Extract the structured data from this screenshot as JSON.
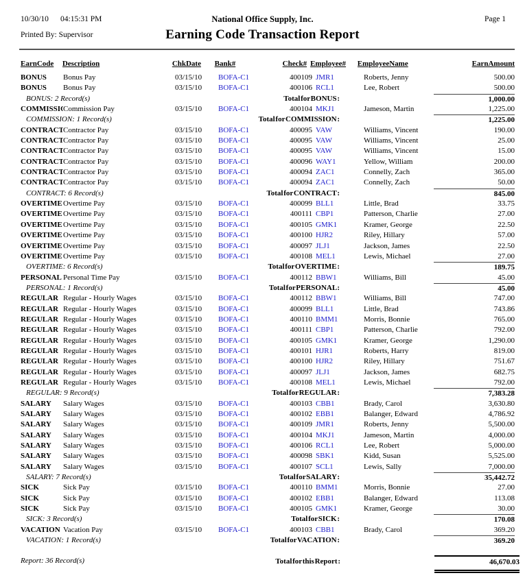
{
  "header": {
    "date": "10/30/10",
    "time": "04:15:31 PM",
    "company": "National Office Supply, Inc.",
    "page": "Page 1",
    "printed_by": "Printed By: Supervisor",
    "title": "Earning Code Transaction Report"
  },
  "columns": [
    "EarnCode",
    "Description",
    "ChkDate",
    "Bank#",
    "Check#",
    "Employee#",
    "EmployeeName",
    "EarnAmount"
  ],
  "colors": {
    "link_blue": "#2020cc",
    "text": "#000000",
    "rule_gray": "#555555"
  },
  "sections": [
    {
      "rows": [
        {
          "code": "BONUS",
          "desc": "Bonus Pay",
          "date": "03/15/10",
          "bank": "BOFA-C1",
          "check": "400109",
          "emp": "JMR1",
          "name": "Roberts, Jenny",
          "amount": "500.00"
        },
        {
          "code": "BONUS",
          "desc": "Bonus Pay",
          "date": "03/15/10",
          "bank": "BOFA-C1",
          "check": "400106",
          "emp": "RCL1",
          "name": "Lee, Robert",
          "amount": "500.00"
        }
      ],
      "summary": "BONUS: 2 Record(s)",
      "total_label": "Total for BONUS :",
      "total": "1,000.00"
    },
    {
      "rows": [
        {
          "code": "COMMISSION",
          "desc": "Commission Pay",
          "date": "03/15/10",
          "bank": "BOFA-C1",
          "check": "400104",
          "emp": "MKJ1",
          "name": "Jameson, Martin",
          "amount": "1,225.00"
        }
      ],
      "summary": "COMMISSION: 1 Record(s)",
      "total_label": "Total for COMMISSION :",
      "total": "1,225.00"
    },
    {
      "rows": [
        {
          "code": "CONTRACT",
          "desc": "Contractor Pay",
          "date": "03/15/10",
          "bank": "BOFA-C1",
          "check": "400095",
          "emp": "VAW",
          "name": "Williams, Vincent",
          "amount": "190.00"
        },
        {
          "code": "CONTRACT",
          "desc": "Contractor Pay",
          "date": "03/15/10",
          "bank": "BOFA-C1",
          "check": "400095",
          "emp": "VAW",
          "name": "Williams, Vincent",
          "amount": "25.00"
        },
        {
          "code": "CONTRACT",
          "desc": "Contractor Pay",
          "date": "03/15/10",
          "bank": "BOFA-C1",
          "check": "400095",
          "emp": "VAW",
          "name": "Williams, Vincent",
          "amount": "15.00"
        },
        {
          "code": "CONTRACT",
          "desc": "Contractor Pay",
          "date": "03/15/10",
          "bank": "BOFA-C1",
          "check": "400096",
          "emp": "WAY1",
          "name": "Yellow, William",
          "amount": "200.00"
        },
        {
          "code": "CONTRACT",
          "desc": "Contractor Pay",
          "date": "03/15/10",
          "bank": "BOFA-C1",
          "check": "400094",
          "emp": "ZAC1",
          "name": "Connelly, Zach",
          "amount": "365.00"
        },
        {
          "code": "CONTRACT",
          "desc": "Contractor Pay",
          "date": "03/15/10",
          "bank": "BOFA-C1",
          "check": "400094",
          "emp": "ZAC1",
          "name": "Connelly, Zach",
          "amount": "50.00"
        }
      ],
      "summary": "CONTRACT: 6 Record(s)",
      "total_label": "Total for CONTRACT :",
      "total": "845.00"
    },
    {
      "rows": [
        {
          "code": "OVERTIME",
          "desc": "Overtime Pay",
          "date": "03/15/10",
          "bank": "BOFA-C1",
          "check": "400099",
          "emp": "BLL1",
          "name": "Little, Brad",
          "amount": "33.75"
        },
        {
          "code": "OVERTIME",
          "desc": "Overtime Pay",
          "date": "03/15/10",
          "bank": "BOFA-C1",
          "check": "400111",
          "emp": "CBP1",
          "name": "Patterson, Charlie",
          "amount": "27.00"
        },
        {
          "code": "OVERTIME",
          "desc": "Overtime Pay",
          "date": "03/15/10",
          "bank": "BOFA-C1",
          "check": "400105",
          "emp": "GMK1",
          "name": "Kramer, George",
          "amount": "22.50"
        },
        {
          "code": "OVERTIME",
          "desc": "Overtime Pay",
          "date": "03/15/10",
          "bank": "BOFA-C1",
          "check": "400100",
          "emp": "HJR2",
          "name": "Riley, Hillary",
          "amount": "57.00"
        },
        {
          "code": "OVERTIME",
          "desc": "Overtime Pay",
          "date": "03/15/10",
          "bank": "BOFA-C1",
          "check": "400097",
          "emp": "JLJ1",
          "name": "Jackson, James",
          "amount": "22.50"
        },
        {
          "code": "OVERTIME",
          "desc": "Overtime Pay",
          "date": "03/15/10",
          "bank": "BOFA-C1",
          "check": "400108",
          "emp": "MEL1",
          "name": "Lewis, Michael",
          "amount": "27.00"
        }
      ],
      "summary": "OVERTIME: 6 Record(s)",
      "total_label": "Total for OVERTIME :",
      "total": "189.75"
    },
    {
      "rows": [
        {
          "code": "PERSONAL",
          "desc": "Personal Time Pay",
          "date": "03/15/10",
          "bank": "BOFA-C1",
          "check": "400112",
          "emp": "BBW1",
          "name": "Williams, Bill",
          "amount": "45.00"
        }
      ],
      "summary": "PERSONAL: 1 Record(s)",
      "total_label": "Total for PERSONAL :",
      "total": "45.00"
    },
    {
      "rows": [
        {
          "code": "REGULAR",
          "desc": "Regular - Hourly Wages",
          "date": "03/15/10",
          "bank": "BOFA-C1",
          "check": "400112",
          "emp": "BBW1",
          "name": "Williams, Bill",
          "amount": "747.00"
        },
        {
          "code": "REGULAR",
          "desc": "Regular - Hourly Wages",
          "date": "03/15/10",
          "bank": "BOFA-C1",
          "check": "400099",
          "emp": "BLL1",
          "name": "Little, Brad",
          "amount": "743.86"
        },
        {
          "code": "REGULAR",
          "desc": "Regular - Hourly Wages",
          "date": "03/15/10",
          "bank": "BOFA-C1",
          "check": "400110",
          "emp": "BMM1",
          "name": "Morris, Bonnie",
          "amount": "765.00"
        },
        {
          "code": "REGULAR",
          "desc": "Regular - Hourly Wages",
          "date": "03/15/10",
          "bank": "BOFA-C1",
          "check": "400111",
          "emp": "CBP1",
          "name": "Patterson, Charlie",
          "amount": "792.00"
        },
        {
          "code": "REGULAR",
          "desc": "Regular - Hourly Wages",
          "date": "03/15/10",
          "bank": "BOFA-C1",
          "check": "400105",
          "emp": "GMK1",
          "name": "Kramer, George",
          "amount": "1,290.00"
        },
        {
          "code": "REGULAR",
          "desc": "Regular - Hourly Wages",
          "date": "03/15/10",
          "bank": "BOFA-C1",
          "check": "400101",
          "emp": "HJR1",
          "name": "Roberts, Harry",
          "amount": "819.00"
        },
        {
          "code": "REGULAR",
          "desc": "Regular - Hourly Wages",
          "date": "03/15/10",
          "bank": "BOFA-C1",
          "check": "400100",
          "emp": "HJR2",
          "name": "Riley, Hillary",
          "amount": "751.67"
        },
        {
          "code": "REGULAR",
          "desc": "Regular - Hourly Wages",
          "date": "03/15/10",
          "bank": "BOFA-C1",
          "check": "400097",
          "emp": "JLJ1",
          "name": "Jackson, James",
          "amount": "682.75"
        },
        {
          "code": "REGULAR",
          "desc": "Regular - Hourly Wages",
          "date": "03/15/10",
          "bank": "BOFA-C1",
          "check": "400108",
          "emp": "MEL1",
          "name": "Lewis, Michael",
          "amount": "792.00"
        }
      ],
      "summary": "REGULAR: 9 Record(s)",
      "total_label": "Total for REGULAR :",
      "total": "7,383.28"
    },
    {
      "rows": [
        {
          "code": "SALARY",
          "desc": "Salary Wages",
          "date": "03/15/10",
          "bank": "BOFA-C1",
          "check": "400103",
          "emp": "CBB1",
          "name": "Brady, Carol",
          "amount": "3,630.80"
        },
        {
          "code": "SALARY",
          "desc": "Salary Wages",
          "date": "03/15/10",
          "bank": "BOFA-C1",
          "check": "400102",
          "emp": "EBB1",
          "name": "Balanger, Edward",
          "amount": "4,786.92"
        },
        {
          "code": "SALARY",
          "desc": "Salary Wages",
          "date": "03/15/10",
          "bank": "BOFA-C1",
          "check": "400109",
          "emp": "JMR1",
          "name": "Roberts, Jenny",
          "amount": "5,500.00"
        },
        {
          "code": "SALARY",
          "desc": "Salary Wages",
          "date": "03/15/10",
          "bank": "BOFA-C1",
          "check": "400104",
          "emp": "MKJ1",
          "name": "Jameson, Martin",
          "amount": "4,000.00"
        },
        {
          "code": "SALARY",
          "desc": "Salary Wages",
          "date": "03/15/10",
          "bank": "BOFA-C1",
          "check": "400106",
          "emp": "RCL1",
          "name": "Lee, Robert",
          "amount": "5,000.00"
        },
        {
          "code": "SALARY",
          "desc": "Salary Wages",
          "date": "03/15/10",
          "bank": "BOFA-C1",
          "check": "400098",
          "emp": "SBK1",
          "name": "Kidd, Susan",
          "amount": "5,525.00"
        },
        {
          "code": "SALARY",
          "desc": "Salary Wages",
          "date": "03/15/10",
          "bank": "BOFA-C1",
          "check": "400107",
          "emp": "SCL1",
          "name": "Lewis, Sally",
          "amount": "7,000.00"
        }
      ],
      "summary": "SALARY: 7 Record(s)",
      "total_label": "Total for SALARY :",
      "total": "35,442.72"
    },
    {
      "rows": [
        {
          "code": "SICK",
          "desc": "Sick Pay",
          "date": "03/15/10",
          "bank": "BOFA-C1",
          "check": "400110",
          "emp": "BMM1",
          "name": "Morris, Bonnie",
          "amount": "27.00"
        },
        {
          "code": "SICK",
          "desc": "Sick Pay",
          "date": "03/15/10",
          "bank": "BOFA-C1",
          "check": "400102",
          "emp": "EBB1",
          "name": "Balanger, Edward",
          "amount": "113.08"
        },
        {
          "code": "SICK",
          "desc": "Sick Pay",
          "date": "03/15/10",
          "bank": "BOFA-C1",
          "check": "400105",
          "emp": "GMK1",
          "name": "Kramer, George",
          "amount": "30.00"
        }
      ],
      "summary": "SICK: 3 Record(s)",
      "total_label": "Total for SICK :",
      "total": "170.08"
    },
    {
      "rows": [
        {
          "code": "VACATION",
          "desc": "Vacation Pay",
          "date": "03/15/10",
          "bank": "BOFA-C1",
          "check": "400103",
          "emp": "CBB1",
          "name": "Brady, Carol",
          "amount": "369.20"
        }
      ],
      "summary": "VACATION: 1 Record(s)",
      "total_label": "Total for VACATION :",
      "total": "369.20"
    }
  ],
  "footer": {
    "summary": "Report: 36 Record(s)",
    "total_label": "Total for this Report :",
    "total": "46,670.03"
  }
}
